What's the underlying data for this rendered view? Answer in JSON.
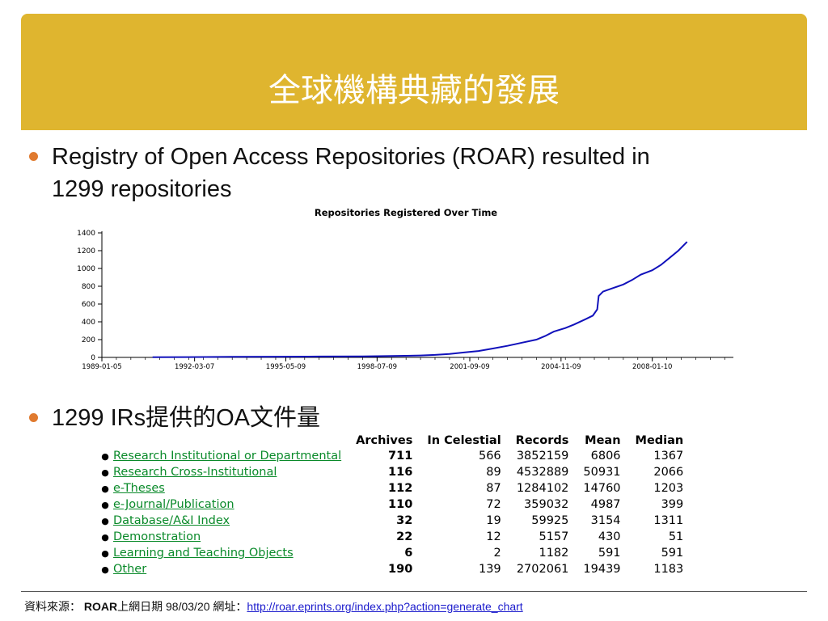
{
  "slide": {
    "title": "全球機構典藏的發展",
    "bullets": [
      {
        "line1": "Registry of Open Access Repositories (ROAR) resulted in",
        "line2": "1299 repositories"
      },
      {
        "line1": "1299 IRs提供的OA文件量"
      }
    ]
  },
  "chart_data": {
    "type": "line",
    "title": "Repositories Registered Over Time",
    "xlabel": "",
    "ylabel": "",
    "x_tick_labels": [
      "1989-01-05",
      "1992-03-07",
      "1995-05-09",
      "1998-07-09",
      "2001-09-09",
      "2004-11-09",
      "2008-01-10"
    ],
    "x_ticks_year": [
      1989.0,
      1992.2,
      1995.35,
      1998.5,
      2001.7,
      2004.85,
      2008.0
    ],
    "xlim": [
      1989.0,
      2010.8
    ],
    "y_ticks": [
      0,
      200,
      400,
      600,
      800,
      1000,
      1200,
      1400
    ],
    "ylim": [
      0,
      1400
    ],
    "grid": false,
    "legend": "none",
    "series_color": "#1111bb",
    "series": [
      {
        "x": [
          1990.75,
          1992.0,
          1993.5,
          1995.0,
          1996.5,
          1998.0,
          1999.0,
          2000.0,
          2000.5,
          2001.0,
          2001.5,
          2002.0,
          2002.5,
          2003.0,
          2003.5,
          2004.0,
          2004.3,
          2004.6,
          2005.0,
          2005.3,
          2005.7,
          2005.95,
          2006.1,
          2006.15,
          2006.3,
          2006.6,
          2007.0,
          2007.3,
          2007.6,
          2008.0,
          2008.3,
          2008.6,
          2008.9,
          2009.2
        ],
        "y": [
          2,
          4,
          6,
          8,
          10,
          12,
          15,
          22,
          28,
          38,
          55,
          72,
          100,
          130,
          165,
          200,
          240,
          290,
          330,
          370,
          430,
          470,
          540,
          690,
          740,
          775,
          820,
          870,
          930,
          980,
          1040,
          1120,
          1200,
          1299
        ]
      }
    ]
  },
  "table": {
    "headers": [
      "Archives",
      "In Celestial",
      "Records",
      "Mean",
      "Median"
    ],
    "rows": [
      {
        "name": "Research Institutional or Departmental",
        "archives": "711",
        "in_celestial": "566",
        "records": "3852159",
        "mean": "6806",
        "median": "1367"
      },
      {
        "name": "Research Cross-Institutional",
        "archives": "116",
        "in_celestial": "89",
        "records": "4532889",
        "mean": "50931",
        "median": "2066"
      },
      {
        "name": "e-Theses",
        "archives": "112",
        "in_celestial": "87",
        "records": "1284102",
        "mean": "14760",
        "median": "1203"
      },
      {
        "name": "e-Journal/Publication",
        "archives": "110",
        "in_celestial": "72",
        "records": "359032",
        "mean": "4987",
        "median": "399"
      },
      {
        "name": "Database/A&I Index",
        "archives": "32",
        "in_celestial": "19",
        "records": "59925",
        "mean": "3154",
        "median": "1311"
      },
      {
        "name": "Demonstration",
        "archives": "22",
        "in_celestial": "12",
        "records": "5157",
        "mean": "430",
        "median": "51"
      },
      {
        "name": "Learning and Teaching Objects",
        "archives": "6",
        "in_celestial": "2",
        "records": "1182",
        "mean": "591",
        "median": "591"
      },
      {
        "name": "Other",
        "archives": "190",
        "in_celestial": "139",
        "records": "2702061",
        "mean": "19439",
        "median": "1183"
      }
    ]
  },
  "footer": {
    "source_label": "資料來源：",
    "roar": "ROAR",
    "date_text": "上網日期 98/03/20 網址：",
    "url": "http://roar.eprints.org/index.php?action=generate_chart"
  },
  "colors": {
    "title_bar": "#dfb52f",
    "bullet": "#e07a2f",
    "link": "#0a8a2a",
    "footer_link": "#1a1acc"
  }
}
